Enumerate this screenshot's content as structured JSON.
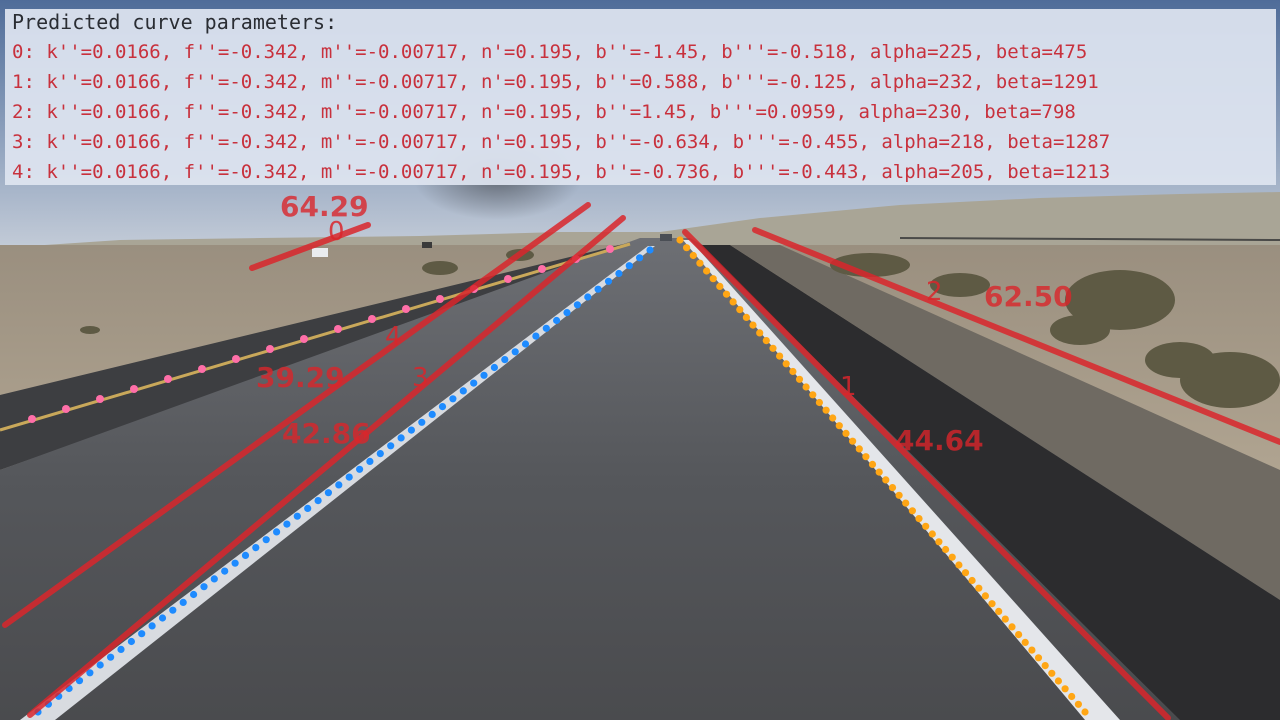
{
  "panel": {
    "title": "Predicted curve parameters:",
    "lines": [
      "0: k''=0.0166, f''=-0.342, m''=-0.00717, n'=0.195, b''=-1.45, b'''=-0.518, alpha=225, beta=475",
      "1: k''=0.0166, f''=-0.342, m''=-0.00717, n'=0.195, b''=0.588, b'''=-0.125, alpha=232, beta=1291",
      "2: k''=0.0166, f''=-0.342, m''=-0.00717, n'=0.195, b''=1.45, b'''=0.0959, alpha=230, beta=798",
      "3: k''=0.0166, f''=-0.342, m''=-0.00717, n'=0.195, b''=-0.634, b'''=-0.455, alpha=218, beta=1287",
      "4: k''=0.0166, f''=-0.342, m''=-0.00717, n'=0.195, b''=-0.736, b'''=-0.443, alpha=205, beta=1213"
    ]
  },
  "overlay": {
    "lane_ids": [
      "0",
      "1",
      "2",
      "3",
      "4"
    ],
    "scores": [
      "64.29",
      "44.64",
      "62.50",
      "42.86",
      "39.29"
    ]
  },
  "colors": {
    "prediction_line": "#d9262b",
    "gt_left_outer": "#ff6fa8",
    "gt_left_inner": "#1e8bff",
    "gt_right_inner": "#ffa615",
    "panel_text": "#c8313d"
  }
}
